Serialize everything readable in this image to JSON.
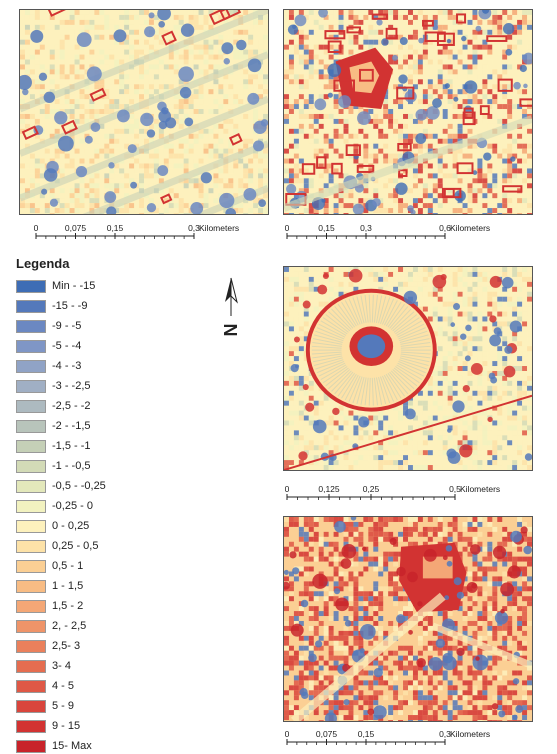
{
  "maps": [
    {
      "name": "map-panel-1",
      "scale": {
        "ticks": [
          "0",
          "0,075",
          "0,15",
          "0,3"
        ],
        "unit": "Kilometers"
      }
    },
    {
      "name": "map-panel-2",
      "scale": {
        "ticks": [
          "0",
          "0,15",
          "0,3",
          "0,6"
        ],
        "unit": "Kilometers"
      }
    },
    {
      "name": "map-panel-3",
      "scale": {
        "ticks": [
          "0",
          "0,125",
          "0,25",
          "0,5"
        ],
        "unit": "Kilometers"
      }
    },
    {
      "name": "map-panel-4",
      "scale": {
        "ticks": [
          "0",
          "0,075",
          "0,15",
          "0,3"
        ],
        "unit": "Kilometers"
      }
    }
  ],
  "legend": {
    "title": "Legenda",
    "items": [
      {
        "label": "Min - -15",
        "color": "#3e6db5"
      },
      {
        "label": "-15 - -9",
        "color": "#5479bb"
      },
      {
        "label": "-9 - -5",
        "color": "#6b88c2"
      },
      {
        "label": "-5 - -4",
        "color": "#7f96c6"
      },
      {
        "label": "-4 - -3",
        "color": "#90a3c6"
      },
      {
        "label": "-3 - -2,5",
        "color": "#a0afc4"
      },
      {
        "label": "-2,5 - -2",
        "color": "#adbac0"
      },
      {
        "label": "-2 - -1,5",
        "color": "#b8c4bb"
      },
      {
        "label": "-1,5 - -1",
        "color": "#c5d0b7"
      },
      {
        "label": "-1 - -0,5",
        "color": "#d3dbb7"
      },
      {
        "label": "-0,5 - -0,25",
        "color": "#e3e8bb"
      },
      {
        "label": "-0,25 - 0",
        "color": "#f2f2c0"
      },
      {
        "label": "0 - 0,25",
        "color": "#fdf1bd"
      },
      {
        "label": "0,25 - 0,5",
        "color": "#fde2a8"
      },
      {
        "label": "0,5 - 1",
        "color": "#fbcf94"
      },
      {
        "label": "1 - 1,5",
        "color": "#f8bc84"
      },
      {
        "label": "1,5 - 2",
        "color": "#f4a776"
      },
      {
        "label": "2, - 2,5",
        "color": "#ef9469"
      },
      {
        "label": "2,5- 3",
        "color": "#ea805c"
      },
      {
        "label": "3- 4",
        "color": "#e56d50"
      },
      {
        "label": "4 - 5",
        "color": "#df5846"
      },
      {
        "label": "5 - 9",
        "color": "#d9453c"
      },
      {
        "label": "9 - 15",
        "color": "#d23332"
      },
      {
        "label": "15- Max",
        "color": "#c8232a"
      }
    ]
  },
  "north_arrow": {
    "label": "N"
  }
}
